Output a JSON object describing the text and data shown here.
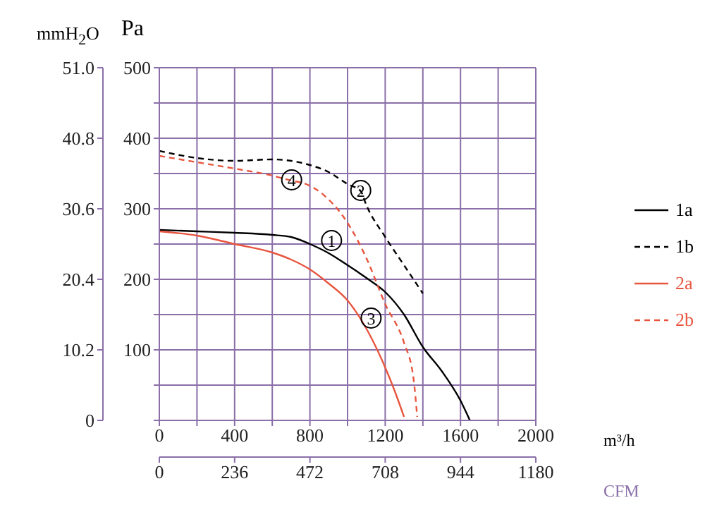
{
  "chart_data": {
    "type": "line",
    "ylabel": "Pa",
    "y2label": "mmH$_{2}$O",
    "xlabel": "m³/h",
    "x2label": "CFM",
    "xlim": [
      0,
      2000
    ],
    "xticks": [
      0,
      {
        "value": 200,
        "label": null
      },
      400,
      {
        "value": 600,
        "label": null
      },
      800,
      {
        "value": 1000,
        "label": null
      },
      1200,
      {
        "value": 1400,
        "label": null
      },
      1600,
      {
        "value": 1800,
        "label": null
      },
      2000
    ],
    "ylim": [
      0,
      500
    ],
    "yticks": [
      {
        "value": 0,
        "label": null
      },
      {
        "value": 50,
        "label": null
      },
      100,
      {
        "value": 150,
        "label": null
      },
      200,
      {
        "value": 250,
        "label": null
      },
      300,
      {
        "value": 350,
        "label": null
      },
      400,
      {
        "value": 450,
        "label": null
      },
      500
    ],
    "y2lim": [
      0,
      51
    ],
    "y2ticks": [
      0,
      10.2,
      20.4,
      30.6,
      40.8,
      {
        "value": 51,
        "label": "51.0"
      }
    ],
    "x2lim": [
      0,
      1180
    ],
    "x2ticks": [
      0,
      236,
      472,
      708,
      944,
      1180
    ],
    "grid": true,
    "legend": "right",
    "marker": "none",
    "series": [
      {
        "name": "1a",
        "color": "#000000",
        "line_style": "solid",
        "x": [
          0,
          200,
          400,
          600,
          700,
          800,
          900,
          1000,
          1100,
          1200,
          1300,
          1400,
          1500,
          1600,
          1650
        ],
        "values": [
          270,
          268,
          266,
          263,
          260,
          250,
          237,
          220,
          202,
          182,
          150,
          104,
          70,
          28,
          0
        ]
      },
      {
        "name": "1b",
        "color": "#000000",
        "line_style": "dashed",
        "x": [
          0,
          200,
          400,
          600,
          800,
          900,
          1000,
          1070,
          1100,
          1200,
          1300,
          1400
        ],
        "values": [
          382,
          372,
          368,
          370,
          362,
          352,
          335,
          325,
          305,
          260,
          220,
          180
        ]
      },
      {
        "name": "2a",
        "color": "#e8553f",
        "line_style": "solid",
        "x": [
          0,
          200,
          400,
          600,
          700,
          800,
          900,
          1000,
          1100,
          1200,
          1250,
          1300
        ],
        "values": [
          268,
          262,
          250,
          238,
          228,
          214,
          194,
          170,
          130,
          75,
          42,
          5
        ]
      },
      {
        "name": "2b",
        "color": "#e8553f",
        "line_style": "dashed",
        "x": [
          0,
          200,
          400,
          600,
          700,
          780,
          900,
          1000,
          1100,
          1200,
          1300,
          1350,
          1370
        ],
        "values": [
          375,
          366,
          357,
          347,
          340,
          335,
          313,
          280,
          230,
          165,
          110,
          60,
          5
        ]
      }
    ],
    "annotations": [
      {
        "text": "1",
        "x": 915,
        "y": 255
      },
      {
        "text": "2",
        "x": 1070,
        "y": 326
      },
      {
        "text": "3",
        "x": 1125,
        "y": 145
      },
      {
        "text": "4",
        "x": 703,
        "y": 341
      }
    ]
  }
}
